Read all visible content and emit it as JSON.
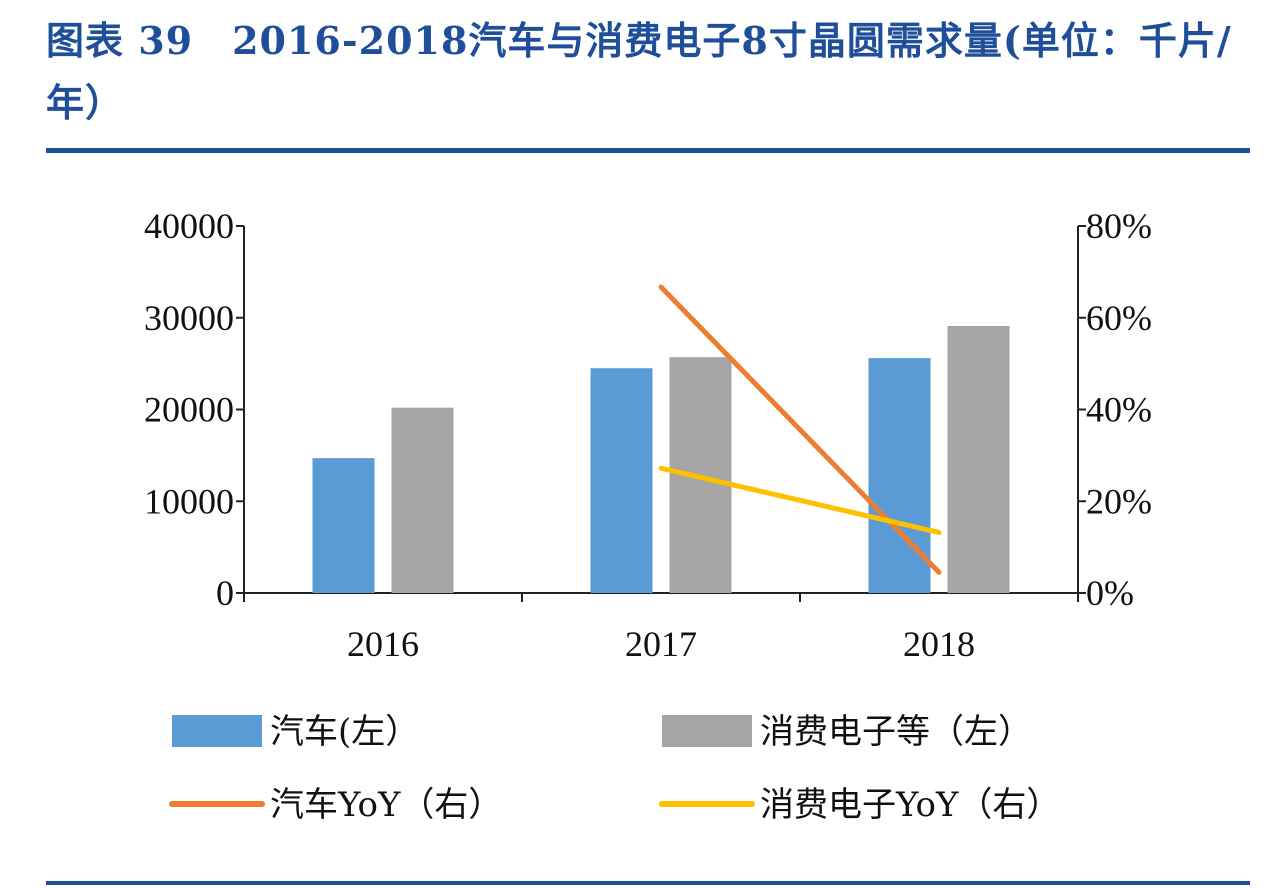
{
  "title": "图表 39　2016-2018汽车与消费电子8寸晶圆需求量(单位：千片/年）",
  "chart_data": {
    "type": "bar",
    "categories": [
      "2016",
      "2017",
      "2018"
    ],
    "series": [
      {
        "name": "汽车(左）",
        "kind": "bar",
        "axis": "left",
        "color": "#5b9bd5",
        "values": [
          14700,
          24500,
          25600
        ]
      },
      {
        "name": "消费电子等（左）",
        "kind": "bar",
        "axis": "left",
        "color": "#a5a5a5",
        "values": [
          20200,
          25700,
          29100
        ]
      },
      {
        "name": "汽车YoY（右）",
        "kind": "line",
        "axis": "right",
        "color": "#ed7d31",
        "values": [
          null,
          0.667,
          0.045
        ]
      },
      {
        "name": "消费电子YoY（右）",
        "kind": "line",
        "axis": "right",
        "color": "#ffc000",
        "values": [
          null,
          0.272,
          0.132
        ]
      }
    ],
    "y_left": {
      "min": 0,
      "max": 40000,
      "ticks": [
        "0",
        "10000",
        "20000",
        "30000",
        "40000"
      ]
    },
    "y_right": {
      "min": 0,
      "max": 0.8,
      "ticks": [
        "0%",
        "20%",
        "40%",
        "60%",
        "80%"
      ]
    },
    "legend_position": "bottom",
    "grid": false
  }
}
